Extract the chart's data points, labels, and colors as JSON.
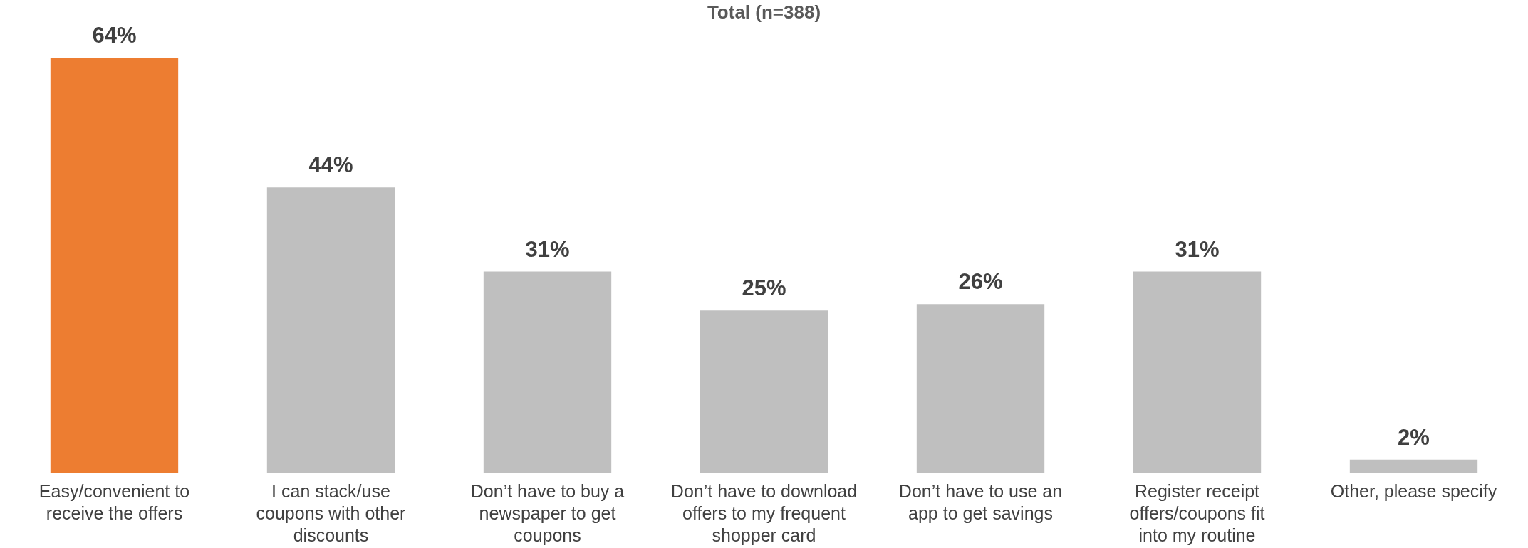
{
  "chart_data": {
    "type": "bar",
    "title": "Total (n=388)",
    "categories": [
      "Easy/convenient to receive the offers",
      "I can stack/use coupons with other discounts",
      "Don’t have to buy a newspaper to get coupons",
      "Don’t have to download offers to my frequent shopper card",
      "Don’t have to use an app to get savings",
      "Register receipt offers/coupons fit into my routine",
      "Other, please specify"
    ],
    "values": [
      64,
      44,
      31,
      25,
      26,
      31,
      2
    ],
    "colors": [
      "#ed7d31",
      "#bfbfbf",
      "#bfbfbf",
      "#bfbfbf",
      "#bfbfbf",
      "#bfbfbf",
      "#bfbfbf"
    ],
    "value_labels": [
      "64%",
      "44%",
      "31%",
      "25%",
      "26%",
      "31%",
      "2%"
    ]
  }
}
